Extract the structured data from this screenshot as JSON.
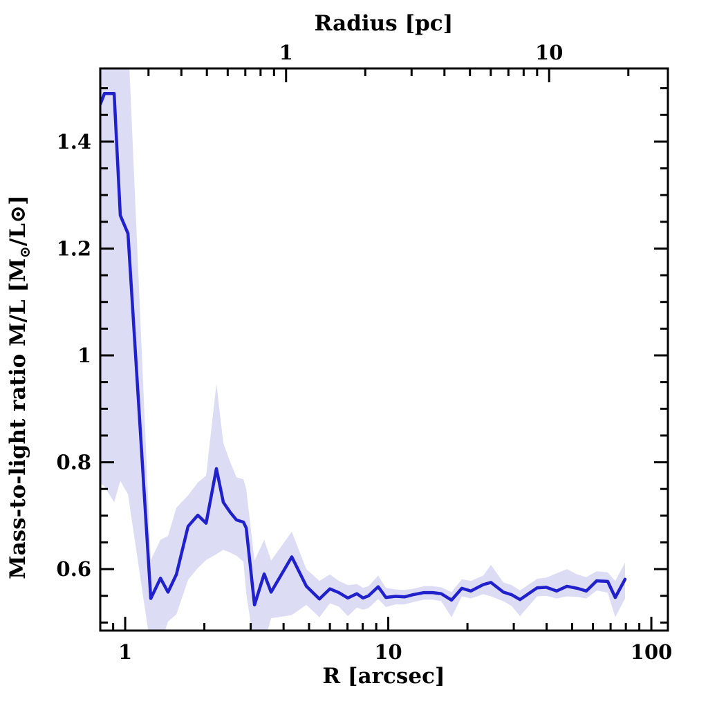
{
  "figure": {
    "background": "#ffffff",
    "frame_color": "#000000"
  },
  "chart_data": {
    "type": "line",
    "title": "",
    "xlabel_bottom": "R [arcsec]",
    "xlabel_top": "Radius [pc]",
    "ylabel_plain": "Mass-to-light ratio M/L [M⊙/L⊙]",
    "ylabel_segments": [
      {
        "text": "Mass-to-light ratio M/L [M"
      },
      {
        "text": "⊙",
        "sub": true
      },
      {
        "text": "/L"
      },
      {
        "text": "⊙]"
      }
    ],
    "x_scale": "log",
    "y_scale": "linear",
    "grid": false,
    "legend": "none",
    "xlim_arcsec": [
      0.804,
      115.6
    ],
    "ylim": [
      0.485,
      1.537
    ],
    "pc_per_arcsec": 0.2446,
    "line_color": "#2121cc",
    "band_color": "#dcdcf5",
    "axes": {
      "bottom": {
        "major_values": [
          1,
          10,
          100
        ],
        "major_labels": [
          "1",
          "10",
          "100"
        ],
        "minor_values": [
          0.9,
          2,
          3,
          4,
          5,
          6,
          7,
          8,
          9,
          20,
          30,
          40,
          50,
          60,
          70,
          80,
          90
        ]
      },
      "top": {
        "major_values_pc": [
          1,
          10
        ],
        "major_labels": [
          "1",
          "10"
        ],
        "minor_values_pc": [
          0.3,
          0.4,
          0.5,
          0.6,
          0.7,
          0.8,
          0.9,
          2,
          3,
          4,
          5,
          6,
          7,
          8,
          9,
          20
        ]
      },
      "y": {
        "major_values": [
          0.6,
          0.8,
          1.0,
          1.2,
          1.4
        ],
        "major_labels": [
          "0.6",
          "0.8",
          "1",
          "1.2",
          "1.4"
        ],
        "minor_step": 0.05,
        "minor_range": [
          0.5,
          1.5
        ]
      }
    },
    "series": [
      {
        "name": "mass-to-light ratio profile",
        "x_name": "R_arcsec",
        "y_name": "M/L",
        "band_name": "uncertainty band (lo/up)",
        "points": [
          {
            "r": 0.804,
            "ml": 1.47,
            "lo": 0.76,
            "up": 1.6
          },
          {
            "r": 0.834,
            "ml": 1.49,
            "lo": 0.755,
            "up": 1.6
          },
          {
            "r": 0.908,
            "ml": 1.49,
            "lo": 0.725,
            "up": 1.6
          },
          {
            "r": 0.958,
            "ml": 1.262,
            "lo": 0.765,
            "up": 1.6
          },
          {
            "r": 1.025,
            "ml": 1.228,
            "lo": 0.74,
            "up": 1.6
          },
          {
            "r": 1.251,
            "ml": 0.545,
            "lo": 0.452,
            "up": 0.617
          },
          {
            "r": 1.362,
            "ml": 0.583,
            "lo": 0.458,
            "up": 0.655
          },
          {
            "r": 1.455,
            "ml": 0.557,
            "lo": 0.502,
            "up": 0.662
          },
          {
            "r": 1.565,
            "ml": 0.59,
            "lo": 0.515,
            "up": 0.715
          },
          {
            "r": 1.734,
            "ml": 0.68,
            "lo": 0.58,
            "up": 0.738
          },
          {
            "r": 1.888,
            "ml": 0.701,
            "lo": 0.602,
            "up": 0.762
          },
          {
            "r": 2.031,
            "ml": 0.686,
            "lo": 0.617,
            "up": 0.775
          },
          {
            "r": 2.222,
            "ml": 0.788,
            "lo": 0.628,
            "up": 0.947
          },
          {
            "r": 2.361,
            "ml": 0.725,
            "lo": 0.636,
            "up": 0.836
          },
          {
            "r": 2.51,
            "ml": 0.706,
            "lo": 0.631,
            "up": 0.8
          },
          {
            "r": 2.648,
            "ml": 0.692,
            "lo": 0.625,
            "up": 0.772
          },
          {
            "r": 2.815,
            "ml": 0.688,
            "lo": 0.614,
            "up": 0.768
          },
          {
            "r": 2.884,
            "ml": 0.677,
            "lo": 0.555,
            "up": 0.75
          },
          {
            "r": 3.101,
            "ml": 0.533,
            "lo": 0.452,
            "up": 0.616
          },
          {
            "r": 3.376,
            "ml": 0.591,
            "lo": 0.462,
            "up": 0.655
          },
          {
            "r": 3.586,
            "ml": 0.557,
            "lo": 0.508,
            "up": 0.616
          },
          {
            "r": 4.297,
            "ml": 0.623,
            "lo": 0.514,
            "up": 0.67
          },
          {
            "r": 4.882,
            "ml": 0.568,
            "lo": 0.533,
            "up": 0.6
          },
          {
            "r": 5.476,
            "ml": 0.544,
            "lo": 0.51,
            "up": 0.578
          },
          {
            "r": 5.998,
            "ml": 0.563,
            "lo": 0.536,
            "up": 0.59
          },
          {
            "r": 6.486,
            "ml": 0.556,
            "lo": 0.53,
            "up": 0.578
          },
          {
            "r": 7.019,
            "ml": 0.546,
            "lo": 0.512,
            "up": 0.57
          },
          {
            "r": 7.594,
            "ml": 0.554,
            "lo": 0.528,
            "up": 0.572
          },
          {
            "r": 8.017,
            "ml": 0.546,
            "lo": 0.524,
            "up": 0.565
          },
          {
            "r": 8.414,
            "ml": 0.55,
            "lo": 0.527,
            "up": 0.568
          },
          {
            "r": 9.158,
            "ml": 0.567,
            "lo": 0.544,
            "up": 0.588
          },
          {
            "r": 9.793,
            "ml": 0.547,
            "lo": 0.529,
            "up": 0.565
          },
          {
            "r": 10.66,
            "ml": 0.549,
            "lo": 0.534,
            "up": 0.562
          },
          {
            "r": 11.53,
            "ml": 0.548,
            "lo": 0.534,
            "up": 0.561
          },
          {
            "r": 12.4,
            "ml": 0.552,
            "lo": 0.538,
            "up": 0.563
          },
          {
            "r": 13.66,
            "ml": 0.556,
            "lo": 0.543,
            "up": 0.568
          },
          {
            "r": 14.77,
            "ml": 0.556,
            "lo": 0.543,
            "up": 0.568
          },
          {
            "r": 15.89,
            "ml": 0.554,
            "lo": 0.54,
            "up": 0.566
          },
          {
            "r": 17.4,
            "ml": 0.542,
            "lo": 0.51,
            "up": 0.557
          },
          {
            "r": 19.05,
            "ml": 0.564,
            "lo": 0.549,
            "up": 0.581
          },
          {
            "r": 20.61,
            "ml": 0.559,
            "lo": 0.545,
            "up": 0.578
          },
          {
            "r": 22.97,
            "ml": 0.571,
            "lo": 0.553,
            "up": 0.588
          },
          {
            "r": 24.56,
            "ml": 0.575,
            "lo": 0.549,
            "up": 0.608
          },
          {
            "r": 27.39,
            "ml": 0.557,
            "lo": 0.54,
            "up": 0.575
          },
          {
            "r": 29.45,
            "ml": 0.552,
            "lo": 0.531,
            "up": 0.57
          },
          {
            "r": 31.69,
            "ml": 0.543,
            "lo": 0.512,
            "up": 0.56
          },
          {
            "r": 36.82,
            "ml": 0.565,
            "lo": 0.549,
            "up": 0.582
          },
          {
            "r": 39.85,
            "ml": 0.566,
            "lo": 0.55,
            "up": 0.584
          },
          {
            "r": 43.63,
            "ml": 0.559,
            "lo": 0.545,
            "up": 0.592
          },
          {
            "r": 47.77,
            "ml": 0.568,
            "lo": 0.549,
            "up": 0.6
          },
          {
            "r": 52.33,
            "ml": 0.564,
            "lo": 0.548,
            "up": 0.59
          },
          {
            "r": 56.59,
            "ml": 0.559,
            "lo": 0.545,
            "up": 0.585
          },
          {
            "r": 61.94,
            "ml": 0.578,
            "lo": 0.56,
            "up": 0.596
          },
          {
            "r": 68.23,
            "ml": 0.577,
            "lo": 0.556,
            "up": 0.594
          },
          {
            "r": 72.95,
            "ml": 0.547,
            "lo": 0.51,
            "up": 0.578
          },
          {
            "r": 79.43,
            "ml": 0.581,
            "lo": 0.545,
            "up": 0.612
          }
        ]
      }
    ]
  }
}
